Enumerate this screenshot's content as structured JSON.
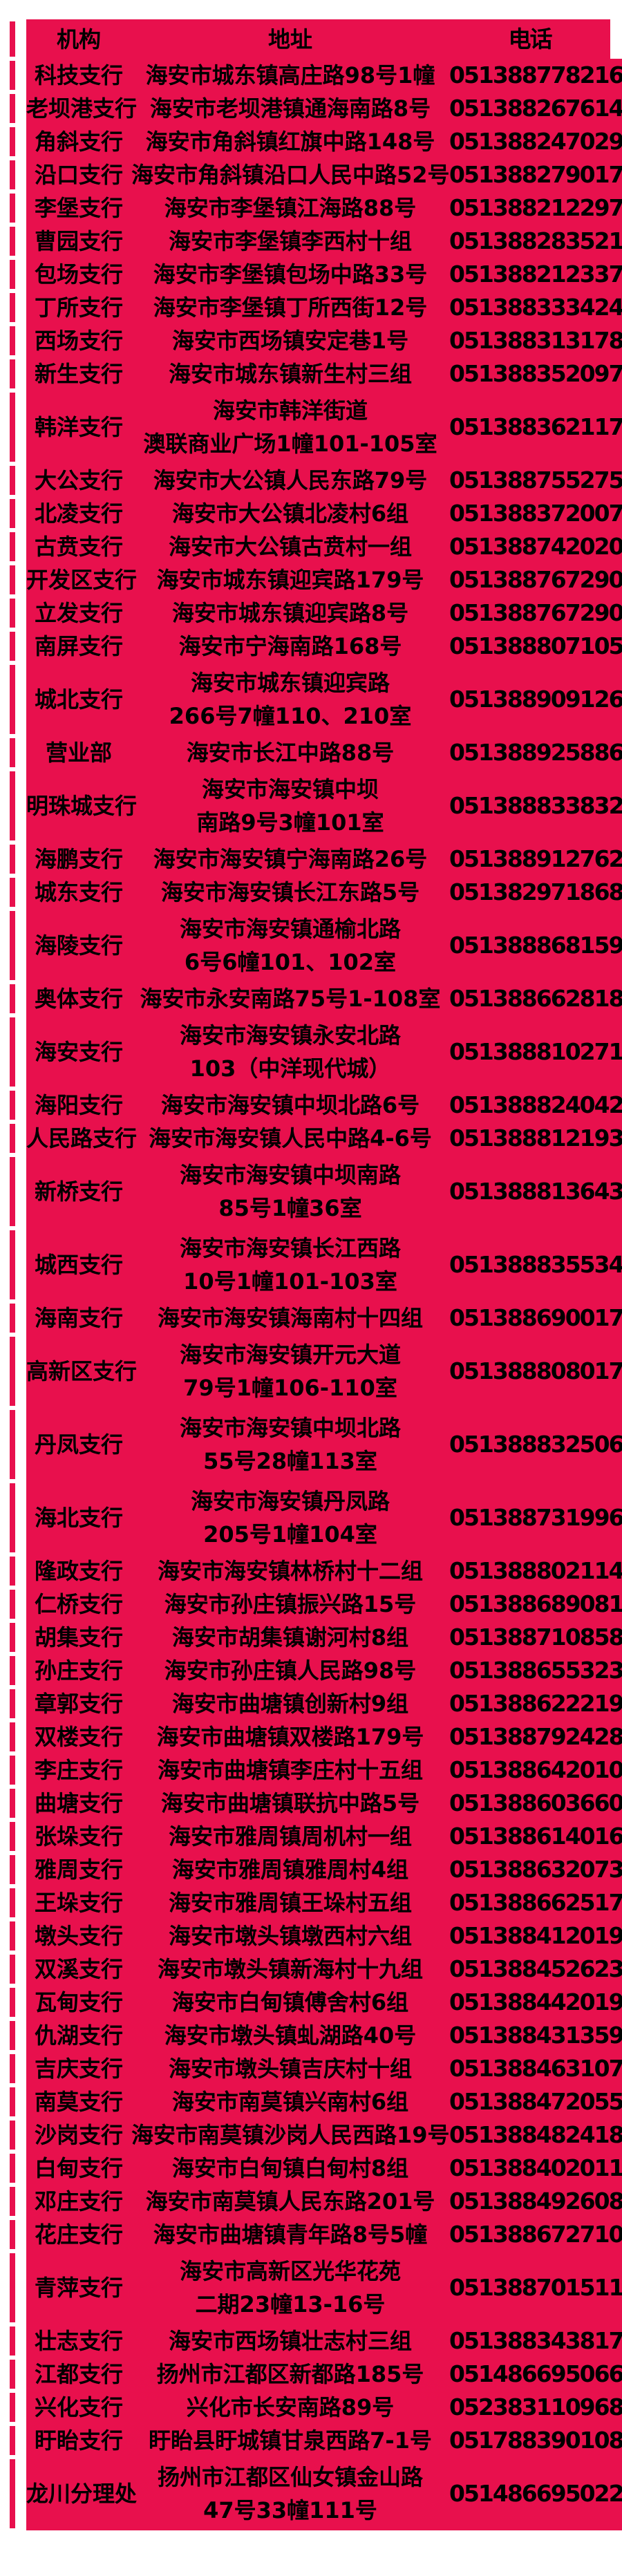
{
  "page": {
    "background": "#ffffff",
    "table_color": "#e8104d",
    "text_color": "#000000"
  },
  "table": {
    "columns": [
      "机构",
      "地址",
      "电话"
    ],
    "rows": [
      {
        "institution": "科技支行",
        "address": "海安市城东镇高庄路98号1幢",
        "phone": "051388778216"
      },
      {
        "institution": "老坝港支行",
        "address": "海安市老坝港镇通海南路8号",
        "phone": "051388267614"
      },
      {
        "institution": "角斜支行",
        "address": "海安市角斜镇红旗中路148号",
        "phone": "051388247029"
      },
      {
        "institution": "沿口支行",
        "address": "海安市角斜镇沿口人民中路52号",
        "phone": "051388279017"
      },
      {
        "institution": "李堡支行",
        "address": "海安市李堡镇江海路88号",
        "phone": "051388212297"
      },
      {
        "institution": "曹园支行",
        "address": "海安市李堡镇李西村十组",
        "phone": "051388283521"
      },
      {
        "institution": "包场支行",
        "address": "海安市李堡镇包场中路33号",
        "phone": "051388212337"
      },
      {
        "institution": "丁所支行",
        "address": "海安市李堡镇丁所西街12号",
        "phone": "051388333424"
      },
      {
        "institution": "西场支行",
        "address": "海安市西场镇安定巷1号",
        "phone": "051388313178"
      },
      {
        "institution": "新生支行",
        "address": "海安市城东镇新生村三组",
        "phone": "051388352097"
      },
      {
        "institution": "韩洋支行",
        "address": "海安市韩洋街道\n澳联商业广场1幢101-105室",
        "phone": "051388362117"
      },
      {
        "institution": "大公支行",
        "address": "海安市大公镇人民东路79号",
        "phone": "051388755275"
      },
      {
        "institution": "北凌支行",
        "address": "海安市大公镇北凌村6组",
        "phone": "051388372007"
      },
      {
        "institution": "古贲支行",
        "address": "海安市大公镇古贲村一组",
        "phone": "051388742020"
      },
      {
        "institution": "开发区支行",
        "address": "海安市城东镇迎宾路179号",
        "phone": "051388767290"
      },
      {
        "institution": "立发支行",
        "address": "海安市城东镇迎宾路8号",
        "phone": "051388767290"
      },
      {
        "institution": "南屏支行",
        "address": "海安市宁海南路168号",
        "phone": "051388807105"
      },
      {
        "institution": "城北支行",
        "address": "海安市城东镇迎宾路\n266号7幢110、210室",
        "phone": "051388909126"
      },
      {
        "institution": "营业部",
        "address": "海安市长江中路88号",
        "phone": "051388925886"
      },
      {
        "institution": "明珠城支行",
        "address": "海安市海安镇中坝\n南路9号3幢101室",
        "phone": "051388833832"
      },
      {
        "institution": "海鹏支行",
        "address": "海安市海安镇宁海南路26号",
        "phone": "051388912762"
      },
      {
        "institution": "城东支行",
        "address": "海安市海安镇长江东路5号",
        "phone": "051382971868"
      },
      {
        "institution": "海陵支行",
        "address": "海安市海安镇通榆北路\n6号6幢101、102室",
        "phone": "051388868159"
      },
      {
        "institution": "奥体支行",
        "address": "海安市永安南路75号1-108室",
        "phone": "051388662818"
      },
      {
        "institution": "海安支行",
        "address": "海安市海安镇永安北路\n103（中洋现代城）",
        "phone": "051388810271"
      },
      {
        "institution": "海阳支行",
        "address": "海安市海安镇中坝北路6号",
        "phone": "051388824042"
      },
      {
        "institution": "人民路支行",
        "address": "海安市海安镇人民中路4-6号",
        "phone": "051388812193"
      },
      {
        "institution": "新桥支行",
        "address": "海安市海安镇中坝南路\n85号1幢36室",
        "phone": "051388813643"
      },
      {
        "institution": "城西支行",
        "address": "海安市海安镇长江西路\n10号1幢101-103室",
        "phone": "051388835534"
      },
      {
        "institution": "海南支行",
        "address": "海安市海安镇海南村十四组",
        "phone": "051388690017"
      },
      {
        "institution": "高新区支行",
        "address": "海安市海安镇开元大道\n79号1幢106-110室",
        "phone": "051388808017"
      },
      {
        "institution": "丹凤支行",
        "address": "海安市海安镇中坝北路\n55号28幢113室",
        "phone": "051388832506"
      },
      {
        "institution": "海北支行",
        "address": "海安市海安镇丹凤路\n205号1幢104室",
        "phone": "051388731996"
      },
      {
        "institution": "隆政支行",
        "address": "海安市海安镇林桥村十二组",
        "phone": "051388802114"
      },
      {
        "institution": "仁桥支行",
        "address": "海安市孙庄镇振兴路15号",
        "phone": "051388689081"
      },
      {
        "institution": "胡集支行",
        "address": "海安市胡集镇谢河村8组",
        "phone": "051388710858"
      },
      {
        "institution": "孙庄支行",
        "address": "海安市孙庄镇人民路98号",
        "phone": "051388655323"
      },
      {
        "institution": "章郭支行",
        "address": "海安市曲塘镇创新村9组",
        "phone": "051388622219"
      },
      {
        "institution": "双楼支行",
        "address": "海安市曲塘镇双楼路179号",
        "phone": "051388792428"
      },
      {
        "institution": "李庄支行",
        "address": "海安市曲塘镇李庄村十五组",
        "phone": "051388642010"
      },
      {
        "institution": "曲塘支行",
        "address": "海安市曲塘镇联抗中路5号",
        "phone": "051388603660"
      },
      {
        "institution": "张垛支行",
        "address": "海安市雅周镇周机村一组",
        "phone": "051388614016"
      },
      {
        "institution": "雅周支行",
        "address": "海安市雅周镇雅周村4组",
        "phone": "051388632073"
      },
      {
        "institution": "王垛支行",
        "address": "海安市雅周镇王垛村五组",
        "phone": "051388662517"
      },
      {
        "institution": "墩头支行",
        "address": "海安市墩头镇墩西村六组",
        "phone": "051388412019"
      },
      {
        "institution": "双溪支行",
        "address": "海安市墩头镇新海村十九组",
        "phone": "051388452623"
      },
      {
        "institution": "瓦甸支行",
        "address": "海安市白甸镇傅舍村6组",
        "phone": "051388442019"
      },
      {
        "institution": "仇湖支行",
        "address": "海安市墩头镇虬湖路40号",
        "phone": "051388431359"
      },
      {
        "institution": "吉庆支行",
        "address": "海安市墩头镇吉庆村十组",
        "phone": "051388463107"
      },
      {
        "institution": "南莫支行",
        "address": "海安市南莫镇兴南村6组",
        "phone": "051388472055"
      },
      {
        "institution": "沙岗支行",
        "address": "海安市南莫镇沙岗人民西路19号",
        "phone": "051388482418"
      },
      {
        "institution": "白甸支行",
        "address": "海安市白甸镇白甸村8组",
        "phone": "051388402011"
      },
      {
        "institution": "邓庄支行",
        "address": "海安市南莫镇人民东路201号",
        "phone": "051388492608"
      },
      {
        "institution": "花庄支行",
        "address": "海安市曲塘镇青年路8号5幢",
        "phone": "051388672710"
      },
      {
        "institution": "青萍支行",
        "address": "海安市高新区光华花苑\n二期23幢13-16号",
        "phone": "051388701511"
      },
      {
        "institution": "壮志支行",
        "address": "海安市西场镇壮志村三组",
        "phone": "051388343817"
      },
      {
        "institution": "江都支行",
        "address": "扬州市江都区新都路185号",
        "phone": "051486695066"
      },
      {
        "institution": "兴化支行",
        "address": "兴化市长安南路89号",
        "phone": "052383110968"
      },
      {
        "institution": "盱眙支行",
        "address": "盱眙县盱城镇甘泉西路7-1号",
        "phone": "051788390108"
      },
      {
        "institution": "龙川分理处",
        "address": "扬州市江都区仙女镇金山路\n47号33幢111号",
        "phone": "051486695022"
      }
    ]
  }
}
